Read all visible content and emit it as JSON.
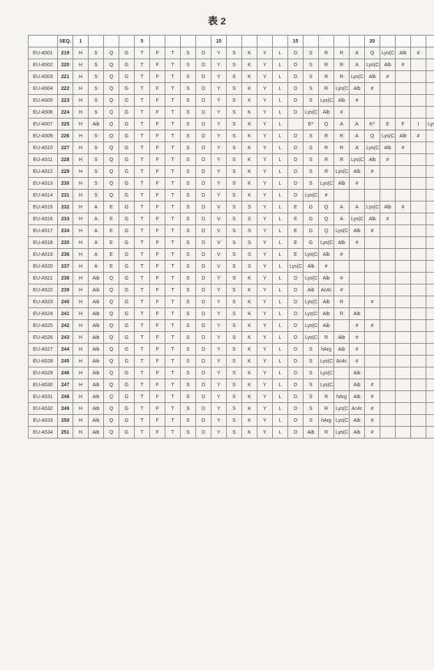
{
  "title": "表 2",
  "headers": {
    "id": "",
    "seqLabel": "SEQ. ID. NO.",
    "positions": [
      "1",
      "",
      "",
      "",
      "5",
      "",
      "",
      "",
      "",
      "10",
      "",
      "",
      "",
      "",
      "15",
      "",
      "",
      "",
      "",
      "20",
      "",
      "",
      "",
      "",
      "25",
      "",
      "",
      ""
    ]
  },
  "rows": [
    {
      "id": "EU-A501",
      "seq": "219",
      "cells": [
        "H",
        "S",
        "Q",
        "G",
        "T",
        "F",
        "T",
        "S",
        "D",
        "Y",
        "S",
        "K",
        "Y",
        "L",
        "D",
        "S",
        "R",
        "R",
        "A",
        "Q",
        "Lys(C12)",
        "Alb",
        "#",
        "",
        "",
        "",
        "",
        ""
      ]
    },
    {
      "id": "EU-A502",
      "seq": "220",
      "cells": [
        "H",
        "S",
        "Q",
        "G",
        "T",
        "F",
        "T",
        "S",
        "D",
        "Y",
        "S",
        "K",
        "Y",
        "L",
        "D",
        "S",
        "R",
        "R",
        "A",
        "Lys(C12)",
        "Alb",
        "#",
        "",
        "",
        "",
        "",
        "",
        ""
      ]
    },
    {
      "id": "EU-A503",
      "seq": "221",
      "cells": [
        "H",
        "S",
        "Q",
        "G",
        "T",
        "F",
        "T",
        "S",
        "D",
        "Y",
        "S",
        "K",
        "Y",
        "L",
        "D",
        "S",
        "R",
        "R",
        "Lys(C12)",
        "Alb",
        "#",
        "",
        "",
        "",
        "",
        "",
        "",
        ""
      ]
    },
    {
      "id": "EU-A504",
      "seq": "222",
      "cells": [
        "H",
        "S",
        "Q",
        "G",
        "T",
        "F",
        "T",
        "S",
        "D",
        "Y",
        "S",
        "K",
        "Y",
        "L",
        "D",
        "S",
        "R",
        "Lys(C12)",
        "Alb",
        "#",
        "",
        "",
        "",
        "",
        "",
        "",
        "",
        ""
      ]
    },
    {
      "id": "EU-A505",
      "seq": "223",
      "cells": [
        "H",
        "S",
        "Q",
        "G",
        "T",
        "F",
        "T",
        "S",
        "D",
        "Y",
        "S",
        "K",
        "Y",
        "L",
        "D",
        "S",
        "Lys(C12)",
        "Alb",
        "#",
        "",
        "",
        "",
        "",
        "",
        "",
        "",
        "",
        ""
      ]
    },
    {
      "id": "EU-A506",
      "seq": "224",
      "cells": [
        "H",
        "S",
        "Q",
        "G",
        "T",
        "F",
        "T",
        "S",
        "D",
        "Y",
        "S",
        "K",
        "Y",
        "L",
        "D",
        "Lys(C12)",
        "Alb",
        "#",
        "",
        "",
        "",
        "",
        "",
        "",
        "",
        "",
        "",
        ""
      ]
    },
    {
      "id": "EU-A507",
      "seq": "225",
      "cells": [
        "H",
        "Aib",
        "Q",
        "G",
        "T",
        "F",
        "T",
        "S",
        "D",
        "Y",
        "S",
        "K",
        "Y",
        "L",
        "",
        "E*",
        "Q",
        "A",
        "A",
        "K*",
        "E",
        "F",
        "I",
        "Lys(C12)",
        "W",
        "L",
        "M",
        "N T#"
      ]
    },
    {
      "id": "EU-A509",
      "seq": "226",
      "cells": [
        "H",
        "S",
        "Q",
        "G",
        "T",
        "F",
        "T",
        "S",
        "D",
        "Y",
        "S",
        "K",
        "Y",
        "L",
        "D",
        "S",
        "R",
        "R",
        "A",
        "Q",
        "Lys(C12)",
        "Alb",
        "#",
        "",
        "",
        "",
        "",
        ""
      ]
    },
    {
      "id": "EU-A510",
      "seq": "227",
      "cells": [
        "H",
        "S",
        "Q",
        "G",
        "T",
        "F",
        "T",
        "S",
        "D",
        "Y",
        "S",
        "K",
        "Y",
        "L",
        "D",
        "S",
        "R",
        "R",
        "A",
        "Lys(C12)",
        "Alb",
        "#",
        "",
        "",
        "",
        "",
        "",
        ""
      ]
    },
    {
      "id": "EU-A511",
      "seq": "228",
      "cells": [
        "H",
        "S",
        "Q",
        "G",
        "T",
        "F",
        "T",
        "S",
        "D",
        "Y",
        "S",
        "K",
        "Y",
        "L",
        "D",
        "S",
        "R",
        "R",
        "Lys(C12)",
        "Alb",
        "#",
        "",
        "",
        "",
        "",
        "",
        "",
        ""
      ]
    },
    {
      "id": "EU-A512",
      "seq": "229",
      "cells": [
        "H",
        "S",
        "Q",
        "G",
        "T",
        "F",
        "T",
        "S",
        "D",
        "Y",
        "S",
        "K",
        "Y",
        "L",
        "D",
        "S",
        "R",
        "Lys(C12)",
        "Alb",
        "#",
        "",
        "",
        "",
        "",
        "",
        "",
        "",
        ""
      ]
    },
    {
      "id": "EU-A513",
      "seq": "230",
      "cells": [
        "H",
        "S",
        "Q",
        "G",
        "T",
        "F",
        "T",
        "S",
        "D",
        "Y",
        "S",
        "K",
        "Y",
        "L",
        "D",
        "S",
        "Lys(C12)",
        "Alb",
        "#",
        "",
        "",
        "",
        "",
        "",
        "",
        "",
        "",
        ""
      ]
    },
    {
      "id": "EU-A514",
      "seq": "231",
      "cells": [
        "H",
        "S",
        "Q",
        "G",
        "T",
        "F",
        "T",
        "S",
        "D",
        "Y",
        "S",
        "K",
        "Y",
        "L",
        "D",
        "Lys(C12)",
        "#",
        "",
        "",
        "",
        "",
        "",
        "",
        "",
        "",
        "",
        "",
        ""
      ]
    },
    {
      "id": "EU-A515",
      "seq": "232",
      "cells": [
        "H",
        "A",
        "E",
        "G",
        "T",
        "F",
        "T",
        "S",
        "D",
        "V",
        "S",
        "S",
        "Y",
        "L",
        "E",
        "G",
        "Q",
        "A",
        "A",
        "Lys(C12)",
        "Alb",
        "#",
        "",
        "",
        "",
        "",
        "",
        ""
      ]
    },
    {
      "id": "EU-A516",
      "seq": "233",
      "cells": [
        "H",
        "A",
        "E",
        "G",
        "T",
        "F",
        "T",
        "S",
        "D",
        "V",
        "S",
        "S",
        "Y",
        "L",
        "E",
        "G",
        "Q",
        "A",
        "Lys(C12)",
        "Alb",
        "#",
        "",
        "",
        "",
        "",
        "",
        "",
        ""
      ]
    },
    {
      "id": "EU-A517",
      "seq": "234",
      "cells": [
        "H",
        "A",
        "E",
        "G",
        "T",
        "F",
        "T",
        "S",
        "D",
        "V",
        "S",
        "S",
        "Y",
        "L",
        "E",
        "G",
        "Q",
        "Lys(C12)",
        "Alb",
        "#",
        "",
        "",
        "",
        "",
        "",
        "",
        "",
        ""
      ]
    },
    {
      "id": "EU-A518",
      "seq": "235",
      "cells": [
        "H",
        "A",
        "E",
        "G",
        "T",
        "F",
        "T",
        "S",
        "D",
        "V",
        "S",
        "S",
        "Y",
        "L",
        "E",
        "G",
        "Lys(C12)",
        "Alb",
        "#",
        "",
        "",
        "",
        "",
        "",
        "",
        "",
        "",
        ""
      ]
    },
    {
      "id": "EU-A519",
      "seq": "236",
      "cells": [
        "H",
        "A",
        "E",
        "G",
        "T",
        "F",
        "T",
        "S",
        "D",
        "V",
        "S",
        "S",
        "Y",
        "L",
        "E",
        "Lys(C12)",
        "Alb",
        "#",
        "",
        "",
        "",
        "",
        "",
        "",
        "",
        "",
        "",
        ""
      ]
    },
    {
      "id": "EU-A520",
      "seq": "237",
      "cells": [
        "H",
        "A",
        "E",
        "G",
        "T",
        "F",
        "T",
        "S",
        "D",
        "V",
        "S",
        "S",
        "Y",
        "L",
        "Lys(C12)",
        "Alb",
        "#",
        "",
        "",
        "",
        "",
        "",
        "",
        "",
        "",
        "",
        "",
        ""
      ]
    },
    {
      "id": "EU-A521",
      "seq": "238",
      "cells": [
        "H",
        "Aib",
        "Q",
        "G",
        "T",
        "F",
        "T",
        "S",
        "D",
        "Y",
        "S",
        "K",
        "Y",
        "L",
        "D",
        "Lys(C12)",
        "Aib",
        "#",
        "",
        "",
        "",
        "",
        "",
        "",
        "",
        "",
        "",
        ""
      ]
    },
    {
      "id": "EU-A522",
      "seq": "239",
      "cells": [
        "H",
        "Aib",
        "Q",
        "G",
        "T",
        "F",
        "T",
        "S",
        "D",
        "Y",
        "S",
        "K",
        "Y",
        "L",
        "D",
        "Aib",
        "Ac4c",
        "#",
        "",
        "",
        "",
        "",
        "",
        "",
        "",
        "",
        "",
        ""
      ]
    },
    {
      "id": "EU-A523",
      "seq": "240",
      "cells": [
        "H",
        "Aib",
        "Q",
        "G",
        "T",
        "F",
        "T",
        "S",
        "D",
        "Y",
        "S",
        "K",
        "Y",
        "L",
        "D",
        "Lys(C12)",
        "Aib",
        "R",
        "",
        "#",
        "",
        "",
        "",
        "",
        "",
        "",
        "",
        ""
      ]
    },
    {
      "id": "EU-A524",
      "seq": "241",
      "cells": [
        "H",
        "Aib",
        "Q",
        "G",
        "T",
        "F",
        "T",
        "S",
        "D",
        "Y",
        "S",
        "K",
        "Y",
        "L",
        "D",
        "Lys(C12)",
        "Aib",
        "R",
        "Aib",
        "",
        "",
        "",
        "",
        "",
        "",
        "",
        "",
        ""
      ]
    },
    {
      "id": "EU-A525",
      "seq": "242",
      "cells": [
        "H",
        "Aib",
        "Q",
        "G",
        "T",
        "F",
        "T",
        "S",
        "D",
        "Y",
        "S",
        "K",
        "Y",
        "L",
        "D",
        "Lys(C12)",
        "Aib",
        "",
        "#",
        "#",
        "",
        "",
        "",
        "",
        "",
        "",
        "",
        ""
      ]
    },
    {
      "id": "EU-A526",
      "seq": "243",
      "cells": [
        "H",
        "Aib",
        "Q",
        "G",
        "T",
        "F",
        "T",
        "S",
        "D",
        "Y",
        "S",
        "K",
        "Y",
        "L",
        "D",
        "Lys(C12)",
        "R",
        "Aib",
        "#",
        "",
        "",
        "",
        "",
        "",
        "",
        "",
        "",
        ""
      ]
    },
    {
      "id": "EU-A527",
      "seq": "244",
      "cells": [
        "H",
        "Aib",
        "Q",
        "G",
        "T",
        "F",
        "T",
        "S",
        "D",
        "Y",
        "S",
        "K",
        "Y",
        "L",
        "D",
        "S",
        "hArg",
        "Aib",
        "#",
        "",
        "",
        "",
        "",
        "",
        "",
        "",
        "",
        ""
      ]
    },
    {
      "id": "EU-A528",
      "seq": "245",
      "cells": [
        "H",
        "Aib",
        "Q",
        "G",
        "T",
        "F",
        "T",
        "S",
        "D",
        "Y",
        "S",
        "K",
        "Y",
        "L",
        "D",
        "S",
        "Lys(C12)",
        "Ac4c",
        "#",
        "",
        "",
        "",
        "",
        "",
        "",
        "",
        "",
        ""
      ]
    },
    {
      "id": "EU-A529",
      "seq": "246",
      "cells": [
        "H",
        "Aib",
        "Q",
        "G",
        "T",
        "F",
        "T",
        "S",
        "D",
        "Y",
        "S",
        "K",
        "Y",
        "L",
        "D",
        "S",
        "Lys(C12)",
        "",
        "Aib",
        "",
        "",
        "",
        "",
        "",
        "",
        "",
        "",
        ""
      ]
    },
    {
      "id": "EU-A530",
      "seq": "247",
      "cells": [
        "H",
        "Aib",
        "Q",
        "G",
        "T",
        "F",
        "T",
        "S",
        "D",
        "Y",
        "S",
        "K",
        "Y",
        "L",
        "D",
        "S",
        "Lys(C12)",
        "",
        "Aib",
        "#",
        "",
        "",
        "",
        "",
        "",
        "",
        "",
        ""
      ]
    },
    {
      "id": "EU-A531",
      "seq": "248",
      "cells": [
        "H",
        "Aib",
        "Q",
        "G",
        "T",
        "F",
        "T",
        "S",
        "D",
        "Y",
        "S",
        "K",
        "Y",
        "L",
        "D",
        "S",
        "R",
        "hArg",
        "Aib",
        "#",
        "",
        "",
        "",
        "",
        "",
        "",
        "",
        ""
      ]
    },
    {
      "id": "EU-A532",
      "seq": "249",
      "cells": [
        "H",
        "Aib",
        "Q",
        "G",
        "T",
        "F",
        "T",
        "S",
        "D",
        "Y",
        "S",
        "K",
        "Y",
        "L",
        "D",
        "S",
        "R",
        "Lys(C12)",
        "Ac4c",
        "#",
        "",
        "",
        "",
        "",
        "",
        "",
        "",
        ""
      ]
    },
    {
      "id": "EU-A533",
      "seq": "250",
      "cells": [
        "H",
        "Aib",
        "Q",
        "G",
        "T",
        "F",
        "T",
        "S",
        "D",
        "Y",
        "S",
        "K",
        "Y",
        "L",
        "D",
        "S",
        "hArg",
        "Lys(C12)",
        "Aib",
        "#",
        "",
        "",
        "",
        "",
        "",
        "",
        "",
        ""
      ]
    },
    {
      "id": "EU-A534",
      "seq": "251",
      "cells": [
        "H",
        "Aib",
        "Q",
        "G",
        "T",
        "F",
        "T",
        "S",
        "D",
        "Y",
        "S",
        "K",
        "Y",
        "L",
        "D",
        "Aib",
        "R",
        "Lys(C12)",
        "Aib",
        "#",
        "",
        "",
        "",
        "",
        "",
        "",
        "",
        ""
      ]
    }
  ],
  "style": {
    "background_color": "#f5f3ee",
    "border_color": "#888888",
    "header_bg": "#fafafa",
    "font_size_cell": 7,
    "font_size_title": 14,
    "num_position_cols": 28
  }
}
